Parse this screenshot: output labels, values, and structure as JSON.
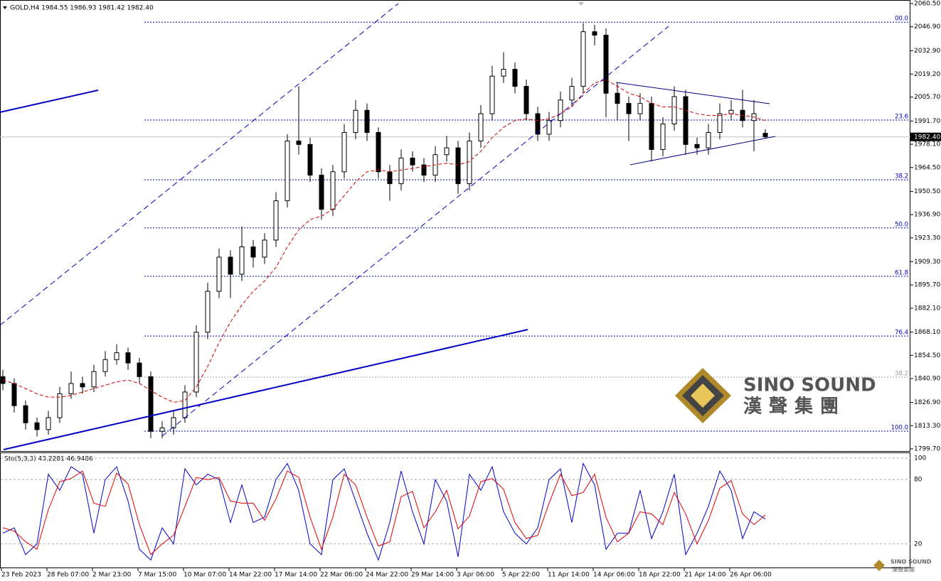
{
  "chart_data": [
    {
      "type": "candlestick",
      "title": "GOLD,H4  1984.55 1986.93 1981.42 1982.40",
      "ylim": [
        1799.7,
        2060.5
      ],
      "yticks": [
        {
          "value": 2060.5,
          "label": "2060.50"
        },
        {
          "value": 2046.9,
          "label": "2046.90"
        },
        {
          "value": 2032.9,
          "label": "2032.90"
        },
        {
          "value": 2019.2,
          "label": "2019.20"
        },
        {
          "value": 2005.7,
          "label": "2005.70"
        },
        {
          "value": 1991.7,
          "label": "1991.70"
        },
        {
          "value": 1978.1,
          "label": "1978.10"
        },
        {
          "value": 1964.5,
          "label": "1964.50"
        },
        {
          "value": 1950.5,
          "label": "1950.50"
        },
        {
          "value": 1936.9,
          "label": "1936.90"
        },
        {
          "value": 1923.3,
          "label": "1923.30"
        },
        {
          "value": 1909.3,
          "label": "1909.30"
        },
        {
          "value": 1895.7,
          "label": "1895.70"
        },
        {
          "value": 1882.1,
          "label": "1882.10"
        },
        {
          "value": 1868.1,
          "label": "1868.10"
        },
        {
          "value": 1854.5,
          "label": "1854.50"
        },
        {
          "value": 1840.9,
          "label": "1840.90"
        },
        {
          "value": 1826.9,
          "label": "1826.90"
        },
        {
          "value": 1813.3,
          "label": "1813.30"
        },
        {
          "value": 1799.7,
          "label": "1799.70"
        }
      ],
      "last_price": {
        "value": 1982.4,
        "label": "1982.40"
      },
      "fib_levels": [
        {
          "value": 2049.6,
          "label": "00.0",
          "color": "#0000c0"
        },
        {
          "value": 1992.3,
          "label": "23.6",
          "color": "#0000c0"
        },
        {
          "value": 1957.3,
          "label": "38.2",
          "color": "#0000c0"
        },
        {
          "value": 1929.1,
          "label": "50.0",
          "color": "#0000c0"
        },
        {
          "value": 1900.8,
          "label": "61.8",
          "color": "#0000c0"
        },
        {
          "value": 1865.8,
          "label": "76.4",
          "color": "#0000c0"
        },
        {
          "value": 1841.7,
          "label": "38.2",
          "color": "#a0a0a0"
        },
        {
          "value": 1810.1,
          "label": "100.0",
          "color": "#0000c0"
        }
      ],
      "ohlc": [
        [
          1842,
          1846,
          1834,
          1838
        ],
        [
          1838,
          1841,
          1821,
          1825
        ],
        [
          1825,
          1828,
          1811,
          1815
        ],
        [
          1815,
          1818,
          1807,
          1811
        ],
        [
          1811,
          1822,
          1808,
          1818
        ],
        [
          1818,
          1836,
          1815,
          1832
        ],
        [
          1832,
          1845,
          1829,
          1838
        ],
        [
          1838,
          1842,
          1832,
          1836
        ],
        [
          1836,
          1849,
          1833,
          1845
        ],
        [
          1845,
          1857,
          1842,
          1852
        ],
        [
          1852,
          1861,
          1849,
          1856
        ],
        [
          1856,
          1859,
          1846,
          1850
        ],
        [
          1850,
          1853,
          1838,
          1842
        ],
        [
          1842,
          1845,
          1806,
          1810
        ],
        [
          1810,
          1816,
          1806,
          1812
        ],
        [
          1812,
          1822,
          1808,
          1818
        ],
        [
          1818,
          1837,
          1815,
          1833
        ],
        [
          1833,
          1872,
          1830,
          1868
        ],
        [
          1868,
          1897,
          1864,
          1892
        ],
        [
          1892,
          1917,
          1888,
          1912
        ],
        [
          1912,
          1916,
          1888,
          1902
        ],
        [
          1902,
          1930,
          1898,
          1918
        ],
        [
          1918,
          1922,
          1906,
          1912
        ],
        [
          1912,
          1926,
          1908,
          1922
        ],
        [
          1922,
          1950,
          1918,
          1945
        ],
        [
          1945,
          1984,
          1941,
          1980
        ],
        [
          1980,
          2012,
          1972,
          1978
        ],
        [
          1978,
          1982,
          1956,
          1960
        ],
        [
          1960,
          1964,
          1934,
          1940
        ],
        [
          1940,
          1966,
          1936,
          1962
        ],
        [
          1962,
          1990,
          1958,
          1985
        ],
        [
          1985,
          2004,
          1981,
          1998
        ],
        [
          1998,
          2002,
          1980,
          1985
        ],
        [
          1985,
          1988,
          1958,
          1962
        ],
        [
          1962,
          1966,
          1945,
          1955
        ],
        [
          1955,
          1975,
          1951,
          1970
        ],
        [
          1970,
          1974,
          1962,
          1966
        ],
        [
          1966,
          1970,
          1956,
          1960
        ],
        [
          1960,
          1977,
          1956,
          1972
        ],
        [
          1972,
          1983,
          1968,
          1976
        ],
        [
          1976,
          1980,
          1949,
          1955
        ],
        [
          1955,
          1985,
          1951,
          1980
        ],
        [
          1980,
          2001,
          1976,
          1996
        ],
        [
          1996,
          2024,
          1992,
          2018
        ],
        [
          2018,
          2032,
          2014,
          2022
        ],
        [
          2022,
          2026,
          2008,
          2012
        ],
        [
          2012,
          2016,
          1992,
          1996
        ],
        [
          1996,
          2000,
          1980,
          1984
        ],
        [
          1984,
          1997,
          1980,
          1992
        ],
        [
          1992,
          2009,
          1988,
          2004
        ],
        [
          2004,
          2017,
          2000,
          2012
        ],
        [
          2012,
          2049,
          2008,
          2044
        ],
        [
          2044,
          2048,
          2036,
          2042
        ],
        [
          2042,
          2046,
          1994,
          2008
        ],
        [
          2008,
          2014,
          1992,
          2002
        ],
        [
          2002,
          2006,
          1980,
          1996
        ],
        [
          1996,
          2008,
          1992,
          2002
        ],
        [
          2002,
          2006,
          1968,
          1975
        ],
        [
          1975,
          1994,
          1971,
          1990
        ],
        [
          1990,
          2012,
          1986,
          2006
        ],
        [
          2006,
          2010,
          1972,
          1978
        ],
        [
          1978,
          1982,
          1972,
          1976
        ],
        [
          1976,
          1990,
          1972,
          1985
        ],
        [
          1985,
          2002,
          1981,
          1996
        ],
        [
          1996,
          2004,
          1992,
          1998
        ],
        [
          1998,
          2010,
          1988,
          1992
        ],
        [
          1992,
          2004,
          1974,
          1996
        ],
        [
          1984.55,
          1986.93,
          1981.42,
          1982.4
        ]
      ],
      "ma": {
        "color": "#d00000",
        "values": [
          1840,
          1838,
          1835,
          1832,
          1830,
          1830,
          1831,
          1833,
          1835,
          1837,
          1839,
          1840,
          1838,
          1834,
          1830,
          1827,
          1828,
          1836,
          1848,
          1862,
          1874,
          1884,
          1892,
          1898,
          1906,
          1918,
          1928,
          1934,
          1936,
          1940,
          1948,
          1956,
          1962,
          1963,
          1962,
          1963,
          1964,
          1965,
          1966,
          1967,
          1966,
          1968,
          1974,
          1982,
          1988,
          1992,
          1993,
          1992,
          1993,
          1996,
          2000,
          2008,
          2014,
          2016,
          2012,
          2008,
          2006,
          2002,
          2000,
          2000,
          1998,
          1996,
          1995,
          1995,
          1996,
          1995,
          1994,
          1992
        ]
      },
      "watermark": {
        "name": "SINO SOUND",
        "chinese": "漢聲集團"
      }
    },
    {
      "type": "line",
      "title": "Sto(5,3,3) 43.2281 46.9486",
      "ylim": [
        0,
        100
      ],
      "yticks": [
        100,
        80,
        20
      ],
      "series": [
        {
          "color": "#0000c8",
          "values": [
            30,
            35,
            10,
            20,
            85,
            70,
            92,
            85,
            30,
            80,
            92,
            60,
            15,
            5,
            35,
            20,
            90,
            75,
            85,
            80,
            40,
            75,
            40,
            45,
            80,
            95,
            70,
            20,
            10,
            80,
            90,
            60,
            30,
            5,
            40,
            88,
            50,
            20,
            80,
            60,
            8,
            85,
            70,
            92,
            50,
            30,
            20,
            35,
            80,
            90,
            40,
            95,
            75,
            15,
            30,
            30,
            70,
            25,
            50,
            85,
            10,
            30,
            55,
            88,
            70,
            25,
            50,
            43.2281
          ]
        },
        {
          "color": "#e00000",
          "values": [
            35,
            32,
            22,
            15,
            52,
            78,
            81,
            88,
            58,
            55,
            86,
            76,
            38,
            10,
            20,
            28,
            55,
            82,
            80,
            82,
            60,
            58,
            58,
            42,
            62,
            88,
            82,
            45,
            15,
            45,
            85,
            75,
            45,
            18,
            22,
            64,
            69,
            35,
            50,
            70,
            34,
            46,
            78,
            81,
            71,
            40,
            25,
            28,
            58,
            85,
            65,
            68,
            85,
            45,
            22,
            30,
            50,
            48,
            38,
            68,
            48,
            20,
            42,
            72,
            79,
            48,
            38,
            46.9486
          ]
        }
      ],
      "x_labels": [
        "23 Feb 2023",
        "28 Feb 07:00",
        "2 Mar 23:00",
        "7 Mar 15:00",
        "10 Mar 07:00",
        "14 Mar 22:00",
        "17 Mar 14:00",
        "22 Mar 06:00",
        "24 Mar 22:00",
        "29 Mar 14:00",
        "3 Apr 06:00",
        "5 Apr 22:00",
        "11 Apr 14:00",
        "14 Apr 06:00",
        "18 Apr 22:00",
        "21 Apr 14:00",
        "26 Apr 06:00"
      ],
      "footer_logo": {
        "name": "SINO SOUND",
        "chinese": "漢聲集團"
      }
    }
  ]
}
